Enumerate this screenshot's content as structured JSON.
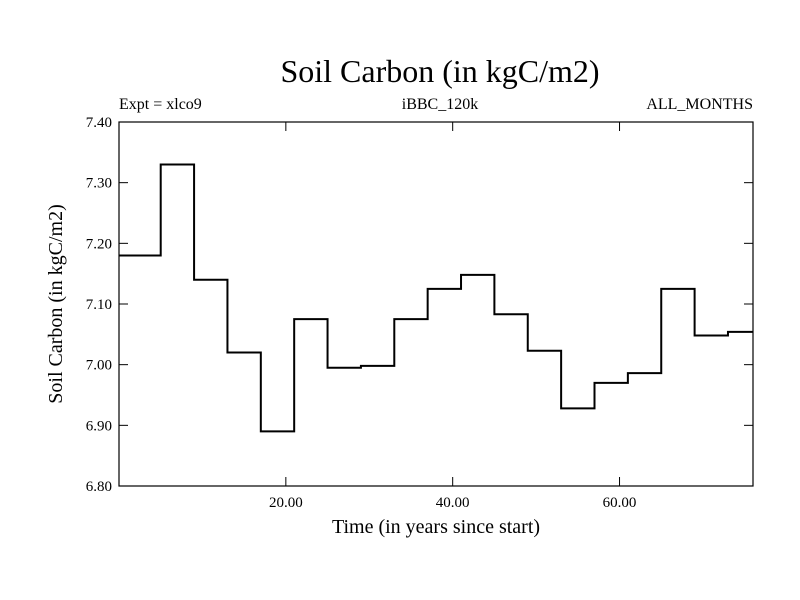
{
  "chart_data": {
    "type": "line",
    "title": "Soil Carbon (in kgC/m2)",
    "header_left": "Expt = xlco9",
    "header_center": "iBBC_120k",
    "header_right": "ALL_MONTHS",
    "xlabel": "Time (in years since start)",
    "ylabel": "Soil Carbon (in kgC/m2)",
    "xlim": [
      0,
      76
    ],
    "ylim": [
      6.8,
      7.4
    ],
    "x_ticks": [
      20,
      40,
      60
    ],
    "x_tick_labels": [
      "20.00",
      "40.00",
      "60.00"
    ],
    "y_ticks": [
      6.8,
      6.9,
      7.0,
      7.1,
      7.2,
      7.3,
      7.4
    ],
    "y_tick_labels": [
      "6.80",
      "6.90",
      "7.00",
      "7.10",
      "7.20",
      "7.30",
      "7.40"
    ],
    "grid": false,
    "step": true,
    "line_color": "#000000",
    "series": [
      {
        "edges": [
          0,
          5,
          9,
          13,
          17,
          21,
          25,
          29,
          33,
          37,
          41,
          45,
          49,
          53,
          57,
          61,
          65,
          69,
          73,
          76
        ],
        "values": [
          7.18,
          7.33,
          7.14,
          7.02,
          6.89,
          7.075,
          6.995,
          6.998,
          7.075,
          7.125,
          7.148,
          7.083,
          7.023,
          6.928,
          6.97,
          6.986,
          7.125,
          7.048,
          7.054
        ]
      }
    ]
  }
}
